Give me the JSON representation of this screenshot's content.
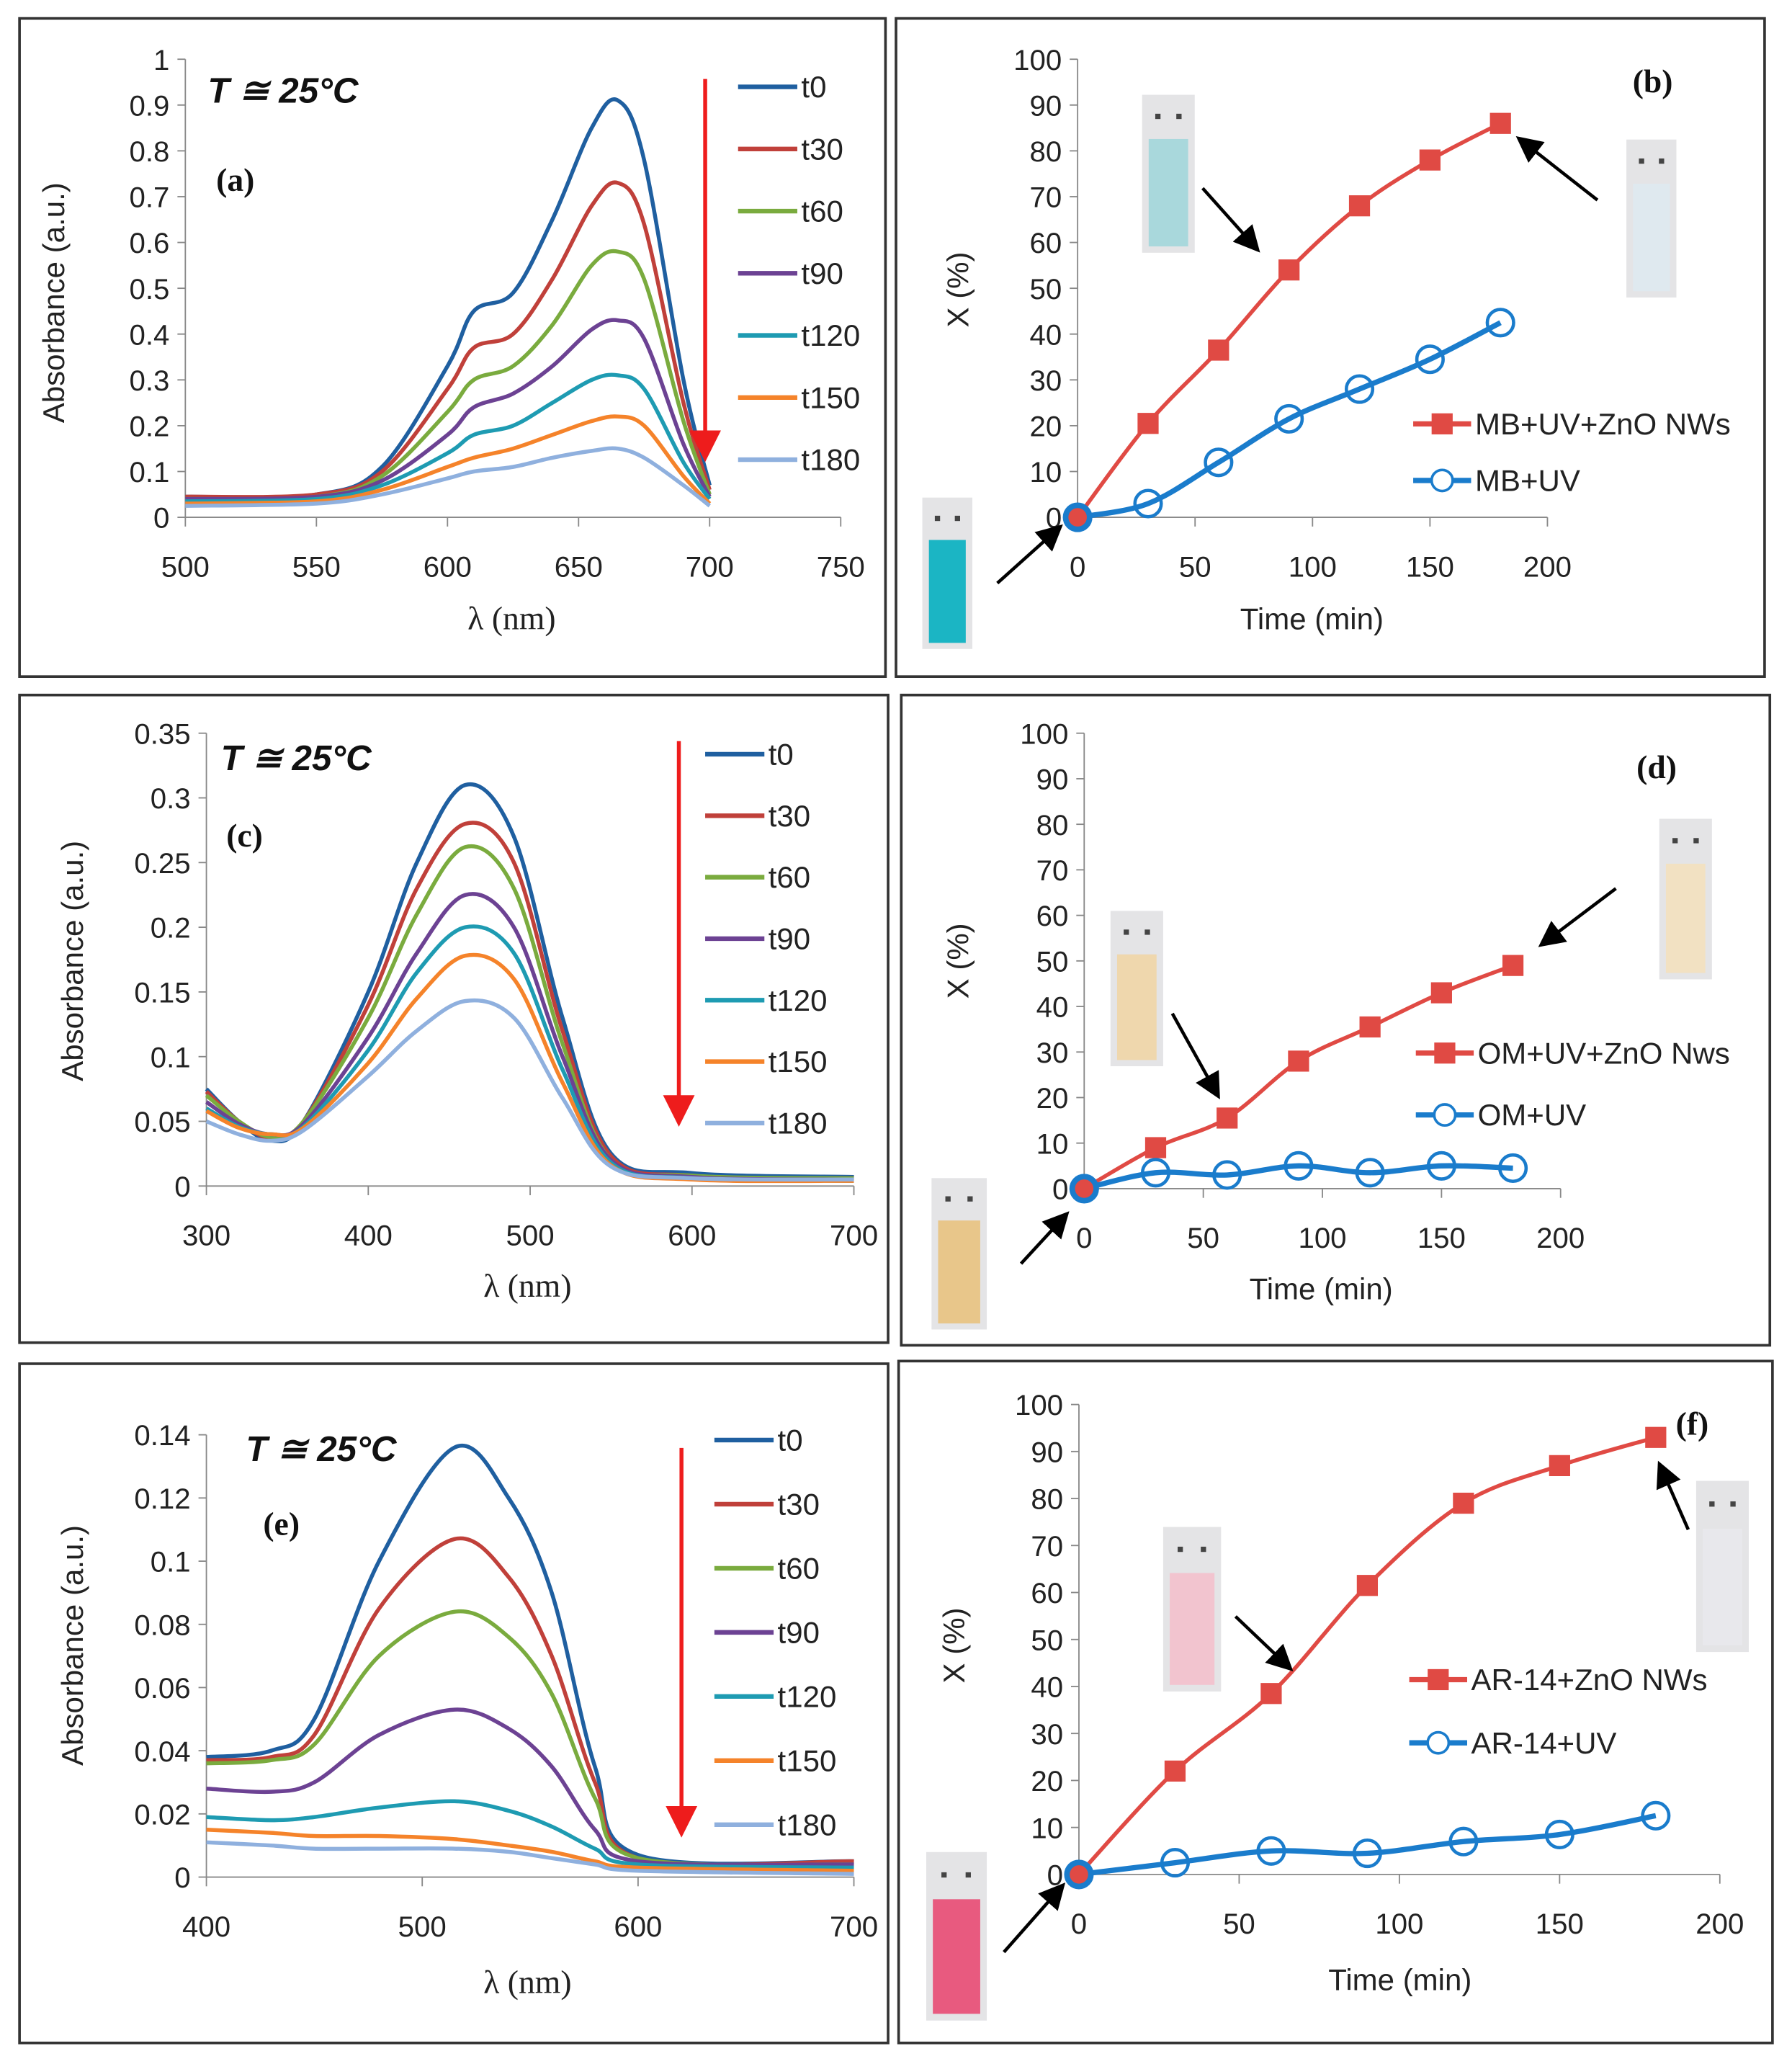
{
  "chart_data": [
    {
      "id": "a",
      "type": "line",
      "panel_label": "(a)",
      "temperature_label": "T ≅ 25°C",
      "xlabel": "λ (nm)",
      "ylabel": "Absorbance (a.u.)",
      "xlim": [
        500,
        750
      ],
      "ylim": [
        0,
        1
      ],
      "xticks": [
        500,
        550,
        600,
        650,
        700,
        750
      ],
      "yticks": [
        0,
        0.1,
        0.2,
        0.3,
        0.4,
        0.5,
        0.6,
        0.7,
        0.8,
        0.9,
        1
      ],
      "legend_position": "top-right",
      "x": [
        500,
        550,
        575,
        600,
        610,
        625,
        640,
        655,
        665,
        675,
        690,
        700
      ],
      "series": [
        {
          "name": "t0",
          "color": "#1f5fa0",
          "values": [
            0.045,
            0.05,
            0.11,
            0.33,
            0.45,
            0.49,
            0.65,
            0.85,
            0.91,
            0.78,
            0.3,
            0.07
          ]
        },
        {
          "name": "t30",
          "color": "#c0403a",
          "values": [
            0.045,
            0.05,
            0.1,
            0.28,
            0.37,
            0.4,
            0.52,
            0.68,
            0.73,
            0.64,
            0.25,
            0.06
          ]
        },
        {
          "name": "t60",
          "color": "#7aab3e",
          "values": [
            0.04,
            0.045,
            0.09,
            0.23,
            0.3,
            0.33,
            0.42,
            0.55,
            0.58,
            0.52,
            0.21,
            0.05
          ]
        },
        {
          "name": "t90",
          "color": "#6c4293",
          "values": [
            0.04,
            0.045,
            0.08,
            0.18,
            0.24,
            0.27,
            0.33,
            0.41,
            0.43,
            0.39,
            0.16,
            0.045
          ]
        },
        {
          "name": "t120",
          "color": "#1e9bb2",
          "values": [
            0.035,
            0.04,
            0.07,
            0.14,
            0.18,
            0.2,
            0.25,
            0.3,
            0.31,
            0.28,
            0.12,
            0.04
          ]
        },
        {
          "name": "t150",
          "color": "#f5832a",
          "values": [
            0.03,
            0.035,
            0.06,
            0.11,
            0.13,
            0.15,
            0.18,
            0.21,
            0.22,
            0.2,
            0.09,
            0.03
          ]
        },
        {
          "name": "t180",
          "color": "#8fb0de",
          "values": [
            0.025,
            0.03,
            0.05,
            0.085,
            0.1,
            0.11,
            0.13,
            0.145,
            0.15,
            0.13,
            0.07,
            0.025
          ]
        }
      ]
    },
    {
      "id": "b",
      "type": "line",
      "panel_label": "(b)",
      "xlabel": "Time (min)",
      "ylabel": "X (%)",
      "xlim": [
        0,
        200
      ],
      "ylim": [
        0,
        100
      ],
      "xticks": [
        0,
        50,
        100,
        150,
        200
      ],
      "yticks": [
        0,
        10,
        20,
        30,
        40,
        50,
        60,
        70,
        80,
        90,
        100
      ],
      "legend_position": "center-right",
      "x": [
        0,
        30,
        60,
        90,
        120,
        150,
        180
      ],
      "series": [
        {
          "name": "MB+UV+ZnO NWs",
          "color": "#e04a44",
          "marker": "square",
          "values": [
            0,
            20.5,
            36.5,
            54,
            68,
            78,
            86
          ]
        },
        {
          "name": "MB+UV",
          "color": "#1a7ccc",
          "marker": "circle",
          "values": [
            0,
            3,
            12,
            21.5,
            28,
            34.5,
            42.5
          ]
        }
      ]
    },
    {
      "id": "c",
      "type": "line",
      "panel_label": "(c)",
      "temperature_label": "T ≅ 25°C",
      "xlabel": "λ (nm)",
      "ylabel": "Absorbance (a.u.)",
      "xlim": [
        300,
        700
      ],
      "ylim": [
        0,
        0.35
      ],
      "xticks": [
        300,
        400,
        500,
        600,
        700
      ],
      "yticks": [
        0,
        0.05,
        0.1,
        0.15,
        0.2,
        0.25,
        0.3,
        0.35
      ],
      "legend_position": "top-right",
      "x": [
        300,
        320,
        340,
        360,
        400,
        430,
        460,
        490,
        520,
        550,
        600,
        700
      ],
      "series": [
        {
          "name": "t0",
          "color": "#1f5fa0",
          "values": [
            0.075,
            0.05,
            0.035,
            0.05,
            0.15,
            0.25,
            0.31,
            0.27,
            0.13,
            0.025,
            0.01,
            0.007
          ]
        },
        {
          "name": "t30",
          "color": "#c0403a",
          "values": [
            0.073,
            0.05,
            0.037,
            0.05,
            0.14,
            0.23,
            0.28,
            0.25,
            0.12,
            0.023,
            0.008,
            0.006
          ]
        },
        {
          "name": "t60",
          "color": "#7aab3e",
          "values": [
            0.07,
            0.05,
            0.038,
            0.05,
            0.13,
            0.21,
            0.262,
            0.23,
            0.11,
            0.02,
            0.008,
            0.006
          ]
        },
        {
          "name": "t90",
          "color": "#6c4293",
          "values": [
            0.065,
            0.048,
            0.04,
            0.048,
            0.115,
            0.18,
            0.225,
            0.2,
            0.1,
            0.02,
            0.007,
            0.005
          ]
        },
        {
          "name": "t120",
          "color": "#1e9bb2",
          "values": [
            0.06,
            0.046,
            0.04,
            0.046,
            0.105,
            0.165,
            0.2,
            0.18,
            0.09,
            0.018,
            0.006,
            0.004
          ]
        },
        {
          "name": "t150",
          "color": "#f5832a",
          "values": [
            0.058,
            0.045,
            0.04,
            0.045,
            0.095,
            0.145,
            0.178,
            0.16,
            0.08,
            0.016,
            0.005,
            0.004
          ]
        },
        {
          "name": "t180",
          "color": "#8fb0de",
          "values": [
            0.05,
            0.04,
            0.035,
            0.043,
            0.085,
            0.12,
            0.143,
            0.13,
            0.068,
            0.015,
            0.006,
            0.005
          ]
        }
      ]
    },
    {
      "id": "d",
      "type": "line",
      "panel_label": "(d)",
      "xlabel": "Time (min)",
      "ylabel": "X (%)",
      "xlim": [
        0,
        200
      ],
      "ylim": [
        0,
        100
      ],
      "xticks": [
        0,
        50,
        100,
        150,
        200
      ],
      "yticks": [
        0,
        10,
        20,
        30,
        40,
        50,
        60,
        70,
        80,
        90,
        100
      ],
      "legend_position": "center-right",
      "x": [
        0,
        30,
        60,
        90,
        120,
        150,
        180
      ],
      "series": [
        {
          "name": "OM+UV+ZnO Nws",
          "color": "#e04a44",
          "marker": "square",
          "values": [
            0,
            9,
            15.5,
            28,
            35.5,
            43,
            49
          ]
        },
        {
          "name": "OM+UV",
          "color": "#1a7ccc",
          "marker": "circle",
          "values": [
            0,
            3.5,
            3,
            5,
            3.5,
            5,
            4.5
          ]
        }
      ]
    },
    {
      "id": "e",
      "type": "line",
      "panel_label": "(e)",
      "temperature_label": "T ≅ 25°C",
      "xlabel": "λ (nm)",
      "ylabel": "Absorbance (a.u.)",
      "xlim": [
        400,
        700
      ],
      "ylim": [
        0,
        0.14
      ],
      "xticks": [
        400,
        500,
        600,
        700
      ],
      "yticks": [
        0,
        0.02,
        0.04,
        0.06,
        0.08,
        0.1,
        0.12,
        0.14
      ],
      "legend_position": "top-right",
      "x": [
        400,
        430,
        450,
        480,
        515,
        540,
        560,
        580,
        600,
        700
      ],
      "series": [
        {
          "name": "t0",
          "color": "#1f5fa0",
          "values": [
            0.038,
            0.04,
            0.05,
            0.1,
            0.136,
            0.12,
            0.09,
            0.035,
            0.007,
            0.005
          ]
        },
        {
          "name": "t30",
          "color": "#c0403a",
          "values": [
            0.037,
            0.038,
            0.045,
            0.085,
            0.107,
            0.095,
            0.07,
            0.03,
            0.006,
            0.005
          ]
        },
        {
          "name": "t60",
          "color": "#7aab3e",
          "values": [
            0.036,
            0.037,
            0.042,
            0.07,
            0.084,
            0.076,
            0.058,
            0.025,
            0.006,
            0.004
          ]
        },
        {
          "name": "t90",
          "color": "#6c4293",
          "values": [
            0.028,
            0.027,
            0.03,
            0.045,
            0.053,
            0.047,
            0.035,
            0.015,
            0.005,
            0.004
          ]
        },
        {
          "name": "t120",
          "color": "#1e9bb2",
          "values": [
            0.019,
            0.018,
            0.019,
            0.022,
            0.024,
            0.021,
            0.016,
            0.009,
            0.004,
            0.003
          ]
        },
        {
          "name": "t150",
          "color": "#f5832a",
          "values": [
            0.015,
            0.014,
            0.013,
            0.013,
            0.012,
            0.01,
            0.008,
            0.005,
            0.003,
            0.002
          ]
        },
        {
          "name": "t180",
          "color": "#8fb0de",
          "values": [
            0.011,
            0.01,
            0.009,
            0.009,
            0.009,
            0.008,
            0.006,
            0.004,
            0.002,
            0.001
          ]
        }
      ]
    },
    {
      "id": "f",
      "type": "line",
      "panel_label": "(f)",
      "xlabel": "Time (min)",
      "ylabel": "X (%)",
      "xlim": [
        0,
        200
      ],
      "ylim": [
        0,
        100
      ],
      "xticks": [
        0,
        50,
        100,
        150,
        200
      ],
      "yticks": [
        0,
        10,
        20,
        30,
        40,
        50,
        60,
        70,
        80,
        90,
        100
      ],
      "legend_position": "center-right",
      "x": [
        0,
        30,
        60,
        90,
        120,
        150,
        180
      ],
      "series": [
        {
          "name": "AR-14+ZnO NWs",
          "color": "#e04a44",
          "marker": "square",
          "values": [
            0,
            22,
            38.5,
            61.5,
            79,
            87,
            93
          ]
        },
        {
          "name": "AR-14+UV",
          "color": "#1a7ccc",
          "marker": "circle",
          "values": [
            0,
            2.5,
            5,
            4.5,
            7,
            8.5,
            12.5
          ]
        }
      ]
    }
  ],
  "cuvette_colors": {
    "b": [
      "#1bb5c4",
      "#a9d8dc",
      "#dfe9ef"
    ],
    "d": [
      "#e8c68a",
      "#efd7ad",
      "#f2e1c2"
    ],
    "f": [
      "#e85a7f",
      "#f2c4cf",
      "#e8e8ec"
    ]
  },
  "arrow_color": "#ee1c1c"
}
